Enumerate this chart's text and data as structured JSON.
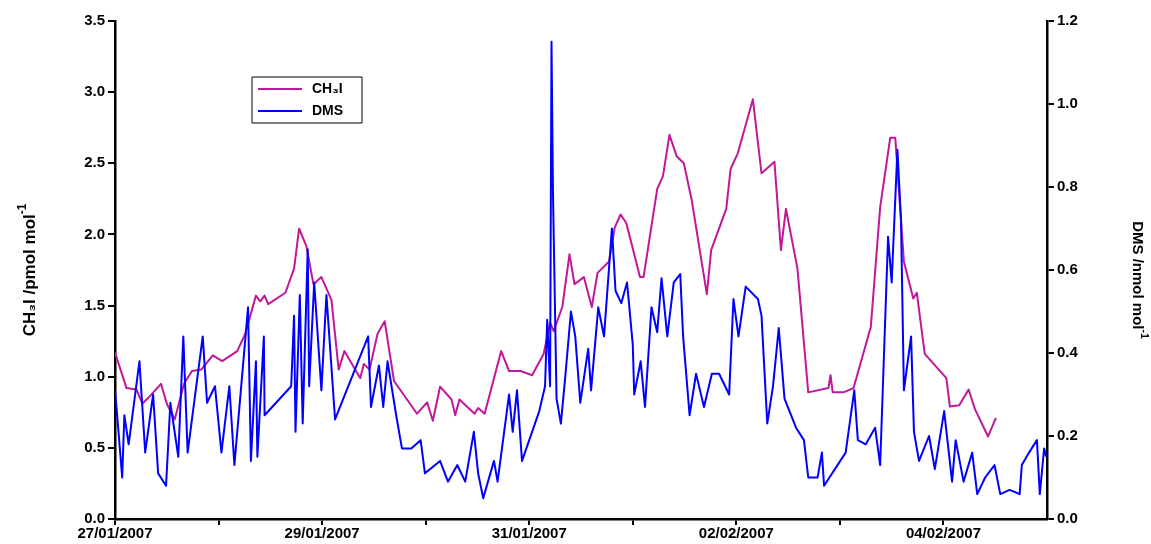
{
  "chart_data": {
    "type": "line",
    "ylabel": "CH₃I /pmol mol$^{-1}$",
    "y2label": "DMS /nmol mol$^{-1}$",
    "xlim": [
      "2007-01-27",
      "2007-02-05"
    ],
    "xticks": [
      {
        "value": "2007-01-27",
        "label": "27/01/2007"
      },
      {
        "value": "2007-01-28",
        "label": null
      },
      {
        "value": "2007-01-29",
        "label": "29/01/2007"
      },
      {
        "value": "2007-01-30",
        "label": null
      },
      {
        "value": "2007-01-31",
        "label": "31/01/2007"
      },
      {
        "value": "2007-02-01",
        "label": null
      },
      {
        "value": "2007-02-02",
        "label": "02/02/2007"
      },
      {
        "value": "2007-02-03",
        "label": null
      },
      {
        "value": "2007-02-04",
        "label": "04/02/2007"
      }
    ],
    "ylim": [
      0,
      3.5
    ],
    "yticks": [
      {
        "value": 0,
        "label": "0.0"
      },
      {
        "value": 0.5,
        "label": "0.5"
      },
      {
        "value": 1,
        "label": "1.0"
      },
      {
        "value": 1.5,
        "label": "1.5"
      },
      {
        "value": 2,
        "label": "2.0"
      },
      {
        "value": 2.5,
        "label": "2.5"
      },
      {
        "value": 3,
        "label": "3.0"
      },
      {
        "value": 3.5,
        "label": "3.5"
      }
    ],
    "y2lim": [
      0,
      1.2
    ],
    "y2ticks": [
      {
        "value": 0,
        "label": "0.0"
      },
      {
        "value": 0.2,
        "label": "0.2"
      },
      {
        "value": 0.4,
        "label": "0.4"
      },
      {
        "value": 0.6,
        "label": "0.6"
      },
      {
        "value": 0.8,
        "label": "0.8"
      },
      {
        "value": 1,
        "label": "1.0"
      },
      {
        "value": 1.2,
        "label": "1.2"
      }
    ],
    "grid": false,
    "legend": "top left",
    "line_style": "solid",
    "series": [
      {
        "name": "CH₃I",
        "color": "#c0189a",
        "x": [
          "2007-01-27T00:00",
          "2007-01-27T02:40",
          "2007-01-27T05:00",
          "2007-01-27T06:20",
          "2007-01-27T07:40",
          "2007-01-27T10:40",
          "2007-01-27T12:00",
          "2007-01-27T13:50",
          "2007-01-27T16:00",
          "2007-01-27T17:50",
          "2007-01-27T20:00",
          "2007-01-27T22:40",
          "2007-01-28T00:50",
          "2007-01-28T04:20",
          "2007-01-28T06:10",
          "2007-01-28T08:40",
          "2007-01-28T09:40",
          "2007-01-28T10:40",
          "2007-01-28T11:30",
          "2007-01-28T15:30",
          "2007-01-28T17:30",
          "2007-01-28T18:40",
          "2007-01-28T20:20",
          "2007-01-28T22:00",
          "2007-01-28T23:50",
          "2007-01-29T02:10",
          "2007-01-29T03:50",
          "2007-01-29T05:10",
          "2007-01-29T08:50",
          "2007-01-29T09:40",
          "2007-01-29T11:00",
          "2007-01-29T12:50",
          "2007-01-29T14:30",
          "2007-01-29T16:40",
          "2007-01-29T22:00",
          "2007-01-30T00:20",
          "2007-01-30T01:40",
          "2007-01-30T03:20",
          "2007-01-30T06:00",
          "2007-01-30T06:50",
          "2007-01-30T07:50",
          "2007-01-30T11:20",
          "2007-01-30T12:10",
          "2007-01-30T13:40",
          "2007-01-30T17:30",
          "2007-01-30T19:20",
          "2007-01-30T22:00",
          "2007-01-31T00:40",
          "2007-01-31T03:20",
          "2007-01-31T04:50",
          "2007-01-31T05:40",
          "2007-01-31T07:40",
          "2007-01-31T09:20",
          "2007-01-31T10:30",
          "2007-01-31T12:40",
          "2007-01-31T14:30",
          "2007-01-31T15:50",
          "2007-01-31T18:30",
          "2007-01-31T19:50",
          "2007-01-31T21:10",
          "2007-01-31T22:30",
          "2007-02-01T01:40",
          "2007-02-01T02:30",
          "2007-02-01T05:40",
          "2007-02-01T07:00",
          "2007-02-01T08:30",
          "2007-02-01T10:10",
          "2007-02-01T11:50",
          "2007-02-01T13:40",
          "2007-02-01T17:10",
          "2007-02-01T18:10",
          "2007-02-01T21:40",
          "2007-02-01T22:40",
          "2007-02-02T00:20",
          "2007-02-02T03:50",
          "2007-02-02T05:50",
          "2007-02-02T08:50",
          "2007-02-02T10:20",
          "2007-02-02T11:30",
          "2007-02-02T14:10",
          "2007-02-02T16:40",
          "2007-02-02T21:20",
          "2007-02-02T21:50",
          "2007-02-02T22:20",
          "2007-02-03T00:50",
          "2007-02-03T03:10",
          "2007-02-03T07:10",
          "2007-02-03T09:20",
          "2007-02-03T11:40",
          "2007-02-03T12:50",
          "2007-02-03T14:50",
          "2007-02-03T17:00",
          "2007-02-03T17:50",
          "2007-02-03T19:40",
          "2007-02-04T00:40",
          "2007-02-04T01:30",
          "2007-02-04T03:40",
          "2007-02-04T05:50",
          "2007-02-04T07:20",
          "2007-02-04T10:20",
          "2007-02-04T12:10"
        ],
        "values": [
          1.17,
          0.92,
          0.91,
          0.81,
          0.85,
          0.95,
          0.81,
          0.7,
          0.95,
          1.04,
          1.05,
          1.15,
          1.11,
          1.18,
          1.3,
          1.57,
          1.53,
          1.57,
          1.51,
          1.59,
          1.76,
          2.04,
          1.92,
          1.65,
          1.7,
          1.54,
          1.05,
          1.18,
          0.99,
          1.09,
          1.05,
          1.3,
          1.39,
          0.97,
          0.74,
          0.82,
          0.69,
          0.93,
          0.84,
          0.73,
          0.84,
          0.74,
          0.78,
          0.74,
          1.18,
          1.04,
          1.04,
          1.01,
          1.16,
          1.38,
          1.32,
          1.49,
          1.86,
          1.65,
          1.7,
          1.49,
          1.73,
          1.81,
          2.05,
          2.14,
          2.08,
          1.7,
          1.7,
          2.32,
          2.41,
          2.7,
          2.55,
          2.5,
          2.24,
          1.58,
          1.89,
          2.18,
          2.46,
          2.57,
          2.95,
          2.43,
          2.51,
          1.89,
          2.18,
          1.76,
          0.89,
          0.92,
          1.01,
          0.89,
          0.89,
          0.92,
          1.35,
          2.19,
          2.68,
          2.68,
          1.81,
          1.55,
          1.59,
          1.16,
          0.99,
          0.79,
          0.8,
          0.91,
          0.77,
          0.58,
          0.71
        ]
      },
      {
        "name": "DMS",
        "color": "#0000ff",
        "axis": "y2",
        "x": [
          "2007-01-27T00:00",
          "2007-01-27T00:30",
          "2007-01-27T01:40",
          "2007-01-27T02:10",
          "2007-01-27T03:10",
          "2007-01-27T05:40",
          "2007-01-27T07:00",
          "2007-01-27T08:50",
          "2007-01-27T10:00",
          "2007-01-27T11:50",
          "2007-01-27T12:50",
          "2007-01-27T14:40",
          "2007-01-27T15:50",
          "2007-01-27T16:50",
          "2007-01-27T20:20",
          "2007-01-27T21:20",
          "2007-01-27T23:10",
          "2007-01-28T00:40",
          "2007-01-28T02:30",
          "2007-01-28T03:40",
          "2007-01-28T06:50",
          "2007-01-28T07:30",
          "2007-01-28T08:40",
          "2007-01-28T09:00",
          "2007-01-28T10:30",
          "2007-01-28T10:40",
          "2007-01-28T16:50",
          "2007-01-28T17:30",
          "2007-01-28T17:50",
          "2007-01-28T18:50",
          "2007-01-28T19:30",
          "2007-01-28T20:40",
          "2007-01-28T21:00",
          "2007-01-28T22:10",
          "2007-01-28T23:50",
          "2007-01-29T01:00",
          "2007-01-29T03:00",
          "2007-01-29T10:40",
          "2007-01-29T11:20",
          "2007-01-29T13:10",
          "2007-01-29T14:10",
          "2007-01-29T15:10",
          "2007-01-29T17:10",
          "2007-01-29T18:30",
          "2007-01-29T20:40",
          "2007-01-29T22:50",
          "2007-01-29T23:50",
          "2007-01-30T03:20",
          "2007-01-30T05:10",
          "2007-01-30T07:20",
          "2007-01-30T09:10",
          "2007-01-30T11:10",
          "2007-01-30T12:10",
          "2007-01-30T13:20",
          "2007-01-30T15:50",
          "2007-01-30T16:40",
          "2007-01-30T19:20",
          "2007-01-30T20:10",
          "2007-01-30T21:10",
          "2007-01-30T22:20",
          "2007-01-31T00:40",
          "2007-01-31T02:20",
          "2007-01-31T03:40",
          "2007-01-31T04:10",
          "2007-01-31T04:50",
          "2007-01-31T05:10",
          "2007-01-31T05:30",
          "2007-01-31T06:20",
          "2007-01-31T07:20",
          "2007-01-31T08:20",
          "2007-01-31T09:40",
          "2007-01-31T10:40",
          "2007-01-31T11:50",
          "2007-01-31T13:40",
          "2007-01-31T14:20",
          "2007-01-31T16:00",
          "2007-01-31T17:20",
          "2007-01-31T19:10",
          "2007-01-31T20:00",
          "2007-01-31T21:20",
          "2007-01-31T22:40",
          "2007-02-01T00:00",
          "2007-02-01T00:20",
          "2007-02-01T01:50",
          "2007-02-01T02:50",
          "2007-02-01T04:20",
          "2007-02-01T05:40",
          "2007-02-01T06:40",
          "2007-02-01T08:00",
          "2007-02-01T09:30",
          "2007-02-01T11:00",
          "2007-02-01T11:40",
          "2007-02-01T13:10",
          "2007-02-01T14:40",
          "2007-02-01T16:30",
          "2007-02-01T18:20",
          "2007-02-01T20:00",
          "2007-02-01T22:20",
          "2007-02-01T23:20",
          "2007-02-02T00:30",
          "2007-02-02T02:10",
          "2007-02-02T05:00",
          "2007-02-02T05:50",
          "2007-02-02T07:10",
          "2007-02-02T08:30",
          "2007-02-02T09:50",
          "2007-02-02T11:10",
          "2007-02-02T13:50",
          "2007-02-02T15:40",
          "2007-02-02T16:40",
          "2007-02-02T18:50",
          "2007-02-02T19:50",
          "2007-02-02T20:20",
          "2007-02-03T01:20",
          "2007-02-03T03:20",
          "2007-02-03T04:10",
          "2007-02-03T06:00",
          "2007-02-03T08:10",
          "2007-02-03T09:20",
          "2007-02-03T11:10",
          "2007-02-03T12:00",
          "2007-02-03T13:20",
          "2007-02-03T14:10",
          "2007-02-03T14:50",
          "2007-02-03T16:30",
          "2007-02-03T17:10",
          "2007-02-03T18:20",
          "2007-02-03T20:40",
          "2007-02-03T22:00",
          "2007-02-04T00:10",
          "2007-02-04T02:00",
          "2007-02-04T02:50",
          "2007-02-04T04:40",
          "2007-02-04T06:40",
          "2007-02-04T07:50",
          "2007-02-04T09:40",
          "2007-02-04T11:50",
          "2007-02-04T13:10",
          "2007-02-04T15:20",
          "2007-02-04T17:40",
          "2007-02-04T18:10",
          "2007-02-04T19:50",
          "2007-02-04T21:40",
          "2007-02-04T22:20",
          "2007-02-04T23:20",
          "2007-02-04T23:50"
        ],
        "values": [
          0.31,
          0.25,
          0.1,
          0.25,
          0.18,
          0.38,
          0.16,
          0.3,
          0.11,
          0.08,
          0.28,
          0.15,
          0.44,
          0.16,
          0.44,
          0.28,
          0.32,
          0.16,
          0.32,
          0.13,
          0.51,
          0.14,
          0.38,
          0.15,
          0.44,
          0.25,
          0.32,
          0.49,
          0.21,
          0.54,
          0.23,
          0.65,
          0.32,
          0.57,
          0.31,
          0.54,
          0.24,
          0.44,
          0.27,
          0.37,
          0.27,
          0.38,
          0.25,
          0.17,
          0.17,
          0.19,
          0.11,
          0.14,
          0.09,
          0.13,
          0.09,
          0.21,
          0.11,
          0.05,
          0.14,
          0.09,
          0.3,
          0.21,
          0.31,
          0.14,
          0.21,
          0.26,
          0.32,
          0.48,
          0.32,
          1.15,
          0.79,
          0.29,
          0.23,
          0.34,
          0.5,
          0.44,
          0.28,
          0.41,
          0.31,
          0.51,
          0.44,
          0.7,
          0.55,
          0.52,
          0.57,
          0.42,
          0.3,
          0.38,
          0.27,
          0.51,
          0.45,
          0.58,
          0.44,
          0.57,
          0.59,
          0.44,
          0.25,
          0.35,
          0.27,
          0.35,
          0.35,
          0.3,
          0.53,
          0.44,
          0.56,
          0.53,
          0.49,
          0.23,
          0.32,
          0.46,
          0.29,
          0.22,
          0.19,
          0.1,
          0.1,
          0.16,
          0.08,
          0.16,
          0.31,
          0.19,
          0.18,
          0.22,
          0.13,
          0.68,
          0.57,
          0.89,
          0.72,
          0.31,
          0.44,
          0.21,
          0.14,
          0.2,
          0.12,
          0.26,
          0.09,
          0.19,
          0.09,
          0.16,
          0.06,
          0.1,
          0.13,
          0.06,
          0.07,
          0.06,
          0.13,
          0.16,
          0.19,
          0.06,
          0.17,
          0.15
        ]
      }
    ]
  }
}
